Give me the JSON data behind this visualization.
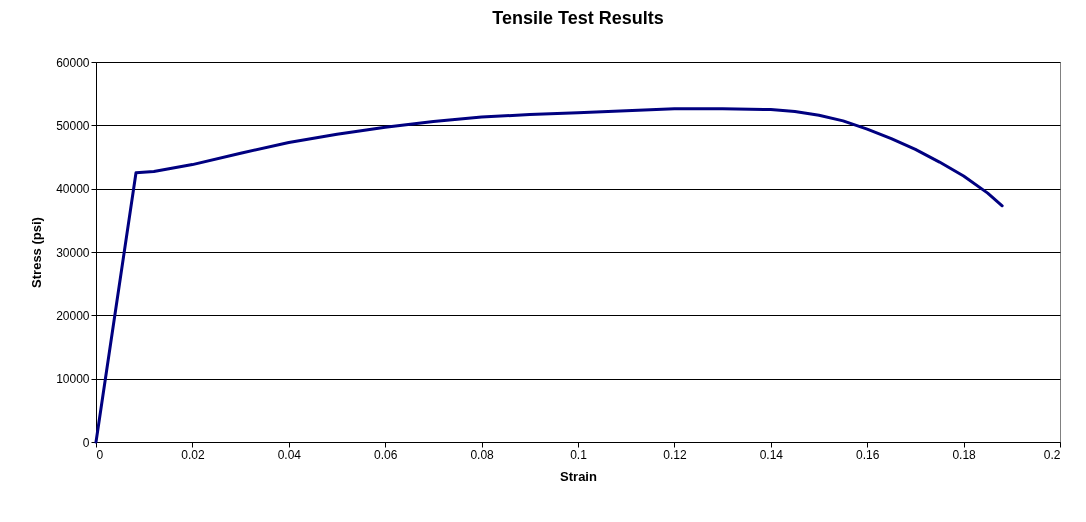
{
  "chart_data": {
    "type": "line",
    "title": "Tensile Test Results",
    "xlabel": "Strain",
    "ylabel": "Stress (psi)",
    "x": [
      0,
      0.004,
      0.0083,
      0.012,
      0.02,
      0.03,
      0.04,
      0.05,
      0.06,
      0.07,
      0.08,
      0.09,
      0.1,
      0.11,
      0.12,
      0.13,
      0.14,
      0.145,
      0.15,
      0.155,
      0.16,
      0.165,
      0.17,
      0.175,
      0.18,
      0.185,
      0.188
    ],
    "series": [
      {
        "color": "#000080",
        "values": [
          0,
          20500,
          42500,
          42700,
          43800,
          45600,
          47300,
          48600,
          49700,
          50600,
          51300,
          51700,
          52000,
          52300,
          52600,
          52600,
          52500,
          52200,
          51600,
          50700,
          49400,
          47900,
          46200,
          44200,
          42000,
          39300,
          37300
        ]
      }
    ],
    "xlim": [
      0,
      0.2
    ],
    "xticks": [
      0,
      0.02,
      0.04,
      0.06,
      0.08,
      0.1,
      0.12,
      0.14,
      0.16,
      0.18,
      0.2
    ],
    "ylim": [
      0,
      60000
    ],
    "yticks": [
      0,
      10000,
      20000,
      30000,
      40000,
      50000,
      60000
    ],
    "grid": "y",
    "marker": "none",
    "line_style": "solid"
  }
}
